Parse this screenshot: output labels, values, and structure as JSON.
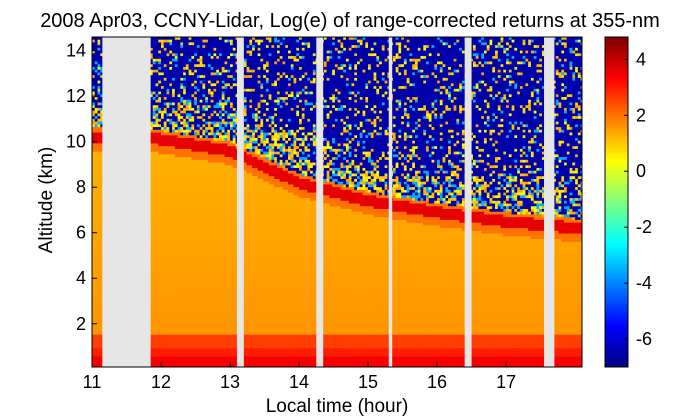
{
  "chart_data": {
    "type": "heatmap",
    "title": "2008 Apr03, CCNY-Lidar, Log(e) of range-corrected returns at 355-nm",
    "xlabel": "Local time (hour)",
    "ylabel": "Altitude (km)",
    "xlim": [
      11,
      18.1
    ],
    "ylim": [
      0.1,
      14.6
    ],
    "x_ticks": [
      11,
      12,
      13,
      14,
      15,
      16,
      17
    ],
    "y_ticks": [
      2,
      4,
      6,
      8,
      10,
      12,
      14
    ],
    "colorbar": {
      "label": "",
      "range": [
        -7,
        4.8
      ],
      "ticks": [
        4,
        2,
        0,
        -2,
        -4,
        -6
      ],
      "colormap": "jet"
    },
    "data_gaps": [
      [
        11.15,
        11.85
      ],
      [
        13.1,
        13.2
      ],
      [
        14.25,
        14.35
      ],
      [
        15.3,
        15.35
      ],
      [
        16.4,
        16.5
      ],
      [
        17.55,
        17.7
      ]
    ],
    "gap_color": "#e6e6e6",
    "layers": [
      {
        "name": "surface-layer",
        "altitude_range_km": [
          0.2,
          1.6
        ],
        "value_range": [
          2.5,
          4.0
        ]
      },
      {
        "name": "aerosol-layer-top",
        "altitude_km": [
          [
            11.8,
            10.2
          ],
          [
            13.0,
            9.6
          ],
          [
            14.0,
            8.2
          ],
          [
            15.0,
            7.4
          ],
          [
            16.0,
            6.9
          ],
          [
            17.0,
            6.5
          ],
          [
            18.1,
            6.2
          ]
        ],
        "value": 3.6
      }
    ]
  }
}
